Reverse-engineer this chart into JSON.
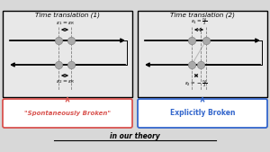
{
  "title1": "Time translation (1)",
  "title2": "Time translation (2)",
  "bottom_text": "in our theory",
  "label_left": "\"Spontaneously Broken\"",
  "label_right": "Explicitly Broken",
  "color_left": "#d9534f",
  "color_right": "#3366cc",
  "fig_bg": "#d8d8d8",
  "panel_bg": "#e8e8e8",
  "eps1_label1": "$\\epsilon_1 = \\epsilon_R$",
  "eps2_label1": "$\\epsilon_2 = \\epsilon_R$",
  "eps1_label2": "$\\epsilon_1 = \\frac{\\epsilon_A}{2}$",
  "eps2_label2": "$\\epsilon_2 = -\\frac{\\epsilon_A}{2}$",
  "dot_color": "#aaaaaa",
  "dot_edge": "#888888"
}
